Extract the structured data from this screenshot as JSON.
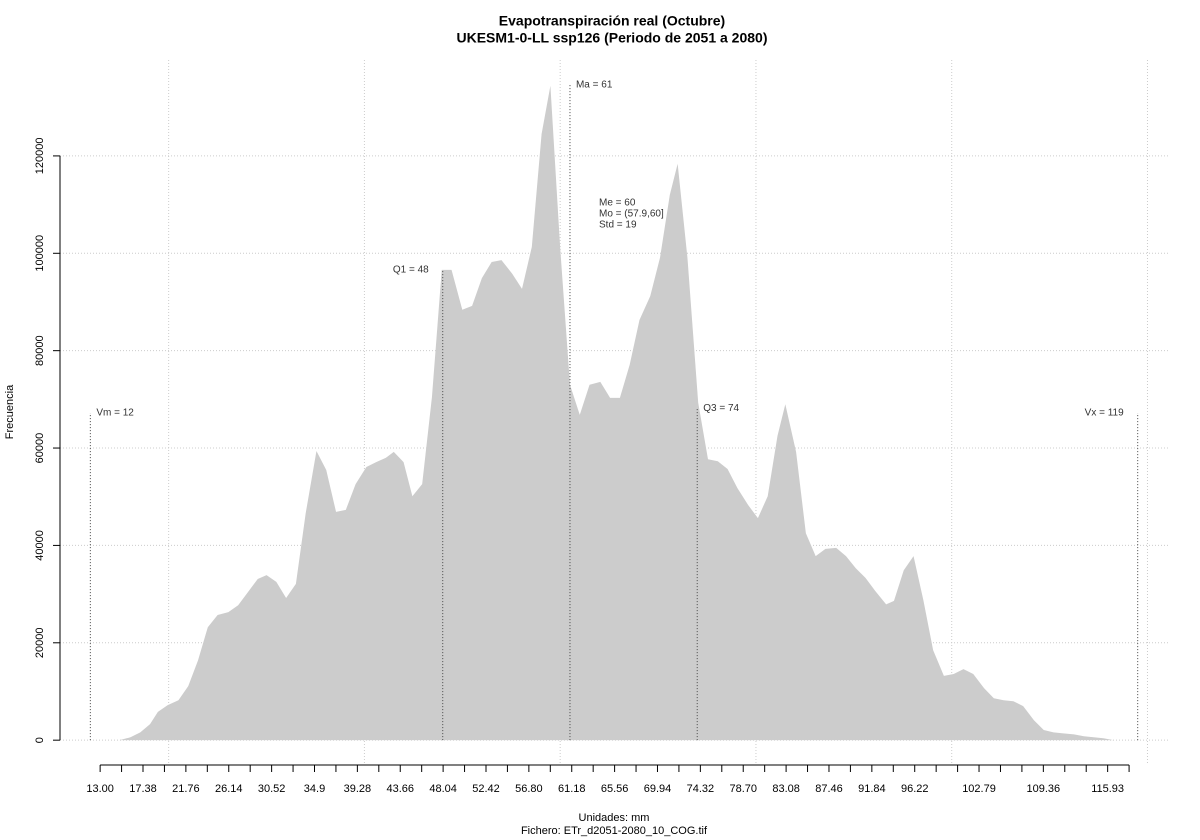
{
  "chart_data": {
    "type": "area",
    "title": "Evapotranspiración real (Octubre)",
    "subtitle": "UKESM1-0-LL ssp126 (Periodo de 2051 a 2080)",
    "xlabel": "Unidades: mm",
    "caption": "Fichero: ETr_d2051-2080_10_COG.tif",
    "ylabel": "Frecuencia",
    "color": "#cccccc",
    "grid": true,
    "xlim": [
      8.9,
      122.3
    ],
    "ylim": [
      -5100,
      139700
    ],
    "yticks": [
      0,
      20000,
      40000,
      60000,
      80000,
      100000,
      120000
    ],
    "xgrid": [
      20,
      40,
      60,
      80,
      100,
      120
    ],
    "xticks": [
      {
        "value": 13,
        "label": "13.00"
      },
      17.38,
      21.76,
      26.14,
      30.52,
      34.9,
      39.28,
      43.66,
      48.04,
      52.42,
      {
        "value": 56.8,
        "label": "56.80"
      },
      61.18,
      65.56,
      69.94,
      74.32,
      {
        "value": 78.7,
        "label": "78.70"
      },
      83.08,
      87.46,
      91.84,
      96.22,
      102.79,
      109.36,
      115.93
    ],
    "xminorticks": [
      15.19,
      19.57,
      23.95,
      28.33,
      32.71,
      37.09,
      41.47,
      45.85,
      50.23,
      54.61,
      58.99,
      63.37,
      67.75,
      72.13,
      76.51,
      80.89,
      85.27,
      89.65,
      94.03,
      98.41,
      100.6,
      104.98,
      107.17,
      111.55,
      113.74,
      118.12
    ],
    "x": [
      13.0,
      15.0,
      16.1,
      17.1,
      18.1,
      18.9,
      19.9,
      21.0,
      22.0,
      23.0,
      24.0,
      25.0,
      26.1,
      27.1,
      28.1,
      29.1,
      30.0,
      31.0,
      32.0,
      33.0,
      34.0,
      35.1,
      36.1,
      37.1,
      38.1,
      39.1,
      40.2,
      41.2,
      42.2,
      43.0,
      44.0,
      44.9,
      45.9,
      46.9,
      47.9,
      48.9,
      50.0,
      51.0,
      52.0,
      53.0,
      54.0,
      55.1,
      56.1,
      57.1,
      58.1,
      59.0,
      60.0,
      61.0,
      62.0,
      63.0,
      64.1,
      65.1,
      66.1,
      67.1,
      68.1,
      69.2,
      70.2,
      71.2,
      72.0,
      73.0,
      74.1,
      75.1,
      76.1,
      77.1,
      78.1,
      79.2,
      80.2,
      81.2,
      82.2,
      83.0,
      84.1,
      85.1,
      86.1,
      87.1,
      88.2,
      89.2,
      90.2,
      91.2,
      92.2,
      93.3,
      94.1,
      95.1,
      96.1,
      97.1,
      98.1,
      99.2,
      100.2,
      101.2,
      102.2,
      103.3,
      104.3,
      105.3,
      106.3,
      107.3,
      108.4,
      109.4,
      110.4,
      111.4,
      112.5,
      113.5,
      114.5,
      115.5,
      116.5,
      117.6
    ],
    "values": [
      0,
      0,
      600,
      1600,
      3300,
      5800,
      7200,
      8200,
      11100,
      16400,
      23200,
      25700,
      26300,
      27700,
      30400,
      33100,
      33900,
      32500,
      29200,
      32100,
      46600,
      59400,
      55500,
      46900,
      47300,
      52600,
      56100,
      57100,
      58000,
      59200,
      57100,
      50100,
      52600,
      70500,
      96600,
      96600,
      88400,
      89200,
      94900,
      98200,
      98600,
      95800,
      92700,
      101300,
      124500,
      134400,
      101100,
      73000,
      66800,
      73000,
      73600,
      70300,
      70300,
      77100,
      86300,
      91200,
      99100,
      112000,
      118400,
      99100,
      69300,
      57700,
      57300,
      55700,
      51800,
      48300,
      45600,
      50100,
      62500,
      69000,
      59200,
      42500,
      37800,
      39300,
      39500,
      37800,
      35300,
      33300,
      30600,
      27900,
      28600,
      34900,
      37800,
      28800,
      18500,
      13200,
      13600,
      14600,
      13600,
      10700,
      8600,
      8200,
      8000,
      7000,
      4100,
      2100,
      1600,
      1400,
      1200,
      800,
      600,
      400,
      0,
      0
    ],
    "annotations": [
      {
        "label": "Vm = 12",
        "x": 12,
        "y": 67200
      },
      {
        "label": "Q1 = 48",
        "x": 48,
        "y": 96600
      },
      {
        "label": "Ma = 61",
        "x": 61,
        "y": 134600
      },
      {
        "label": "Q3 = 74",
        "x": 74,
        "y": 68200
      },
      {
        "label": "Vx = 119",
        "x": 119,
        "y": 67200
      }
    ],
    "stats_text": [
      "Me = 60",
      "Mo = (57.9,60]",
      "Std = 19"
    ]
  }
}
